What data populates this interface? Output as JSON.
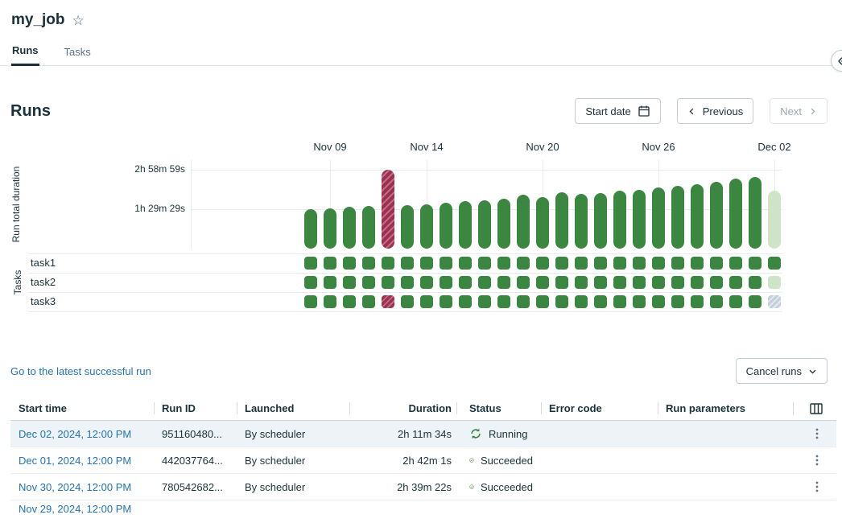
{
  "app": {
    "title": "my_job"
  },
  "tabs": [
    {
      "label": "Runs",
      "active": true
    },
    {
      "label": "Tasks",
      "active": false
    }
  ],
  "section_title": "Runs",
  "toolbar": {
    "start_date": "Start date",
    "previous": "Previous",
    "next": "Next"
  },
  "icons": {
    "favorite": "star-outline",
    "start_date": "calendar",
    "previous": "chevron-left",
    "next": "chevron-right",
    "expand_panel": "double-chevron-left",
    "cancel_runs": "chevron-down",
    "running": "sync-arrows-circle",
    "succeeded": "check-circle",
    "row_menu": "kebab-vertical",
    "column_settings": "table-columns",
    "stop_run": "stop-square"
  },
  "colors": {
    "link": "#2272b4",
    "success": "#3b8640",
    "failed": "#9e2f50",
    "running": "#cfe4c6",
    "pending": "#c3cfda"
  },
  "chart_data": {
    "type": "bar",
    "title": "",
    "xlabel": "",
    "ylabel": "Run total duration",
    "tasks_axis_label": "Tasks",
    "task_rows": [
      "task1",
      "task2",
      "task3"
    ],
    "y_max_seconds": 10739,
    "grid": true,
    "y_ticks": [
      {
        "label": "2h 58m 59s",
        "seconds": 10739
      },
      {
        "label": "1h 29m 29s",
        "seconds": 5369
      }
    ],
    "x_ticks": [
      {
        "label": "Nov 09",
        "index": 1
      },
      {
        "label": "Nov 14",
        "index": 6
      },
      {
        "label": "Nov 20",
        "index": 12
      },
      {
        "label": "Nov 26",
        "index": 18
      },
      {
        "label": "Dec 02",
        "index": 24
      }
    ],
    "runs": [
      {
        "date": "Nov 08",
        "duration_s": 5369,
        "status": "success",
        "tasks": [
          "success",
          "success",
          "success"
        ]
      },
      {
        "date": "Nov 09",
        "duration_s": 5520,
        "status": "success",
        "tasks": [
          "success",
          "success",
          "success"
        ]
      },
      {
        "date": "Nov 10",
        "duration_s": 5650,
        "status": "success",
        "tasks": [
          "success",
          "success",
          "success"
        ]
      },
      {
        "date": "Nov 11",
        "duration_s": 5810,
        "status": "success",
        "tasks": [
          "success",
          "success",
          "success"
        ]
      },
      {
        "date": "Nov 12",
        "duration_s": 10739,
        "status": "failed",
        "tasks": [
          "success",
          "success",
          "failed"
        ]
      },
      {
        "date": "Nov 13",
        "duration_s": 5930,
        "status": "success",
        "tasks": [
          "success",
          "success",
          "success"
        ]
      },
      {
        "date": "Nov 14",
        "duration_s": 6080,
        "status": "success",
        "tasks": [
          "success",
          "success",
          "success"
        ]
      },
      {
        "date": "Nov 15",
        "duration_s": 6290,
        "status": "success",
        "tasks": [
          "success",
          "success",
          "success"
        ]
      },
      {
        "date": "Nov 16",
        "duration_s": 6420,
        "status": "success",
        "tasks": [
          "success",
          "success",
          "success"
        ]
      },
      {
        "date": "Nov 17",
        "duration_s": 6610,
        "status": "success",
        "tasks": [
          "success",
          "success",
          "success"
        ]
      },
      {
        "date": "Nov 18",
        "duration_s": 6830,
        "status": "success",
        "tasks": [
          "success",
          "success",
          "success"
        ]
      },
      {
        "date": "Nov 19",
        "duration_s": 7320,
        "status": "success",
        "tasks": [
          "success",
          "success",
          "success"
        ]
      },
      {
        "date": "Nov 20",
        "duration_s": 7020,
        "status": "success",
        "tasks": [
          "success",
          "success",
          "success"
        ]
      },
      {
        "date": "Nov 21",
        "duration_s": 7680,
        "status": "success",
        "tasks": [
          "success",
          "success",
          "success"
        ]
      },
      {
        "date": "Nov 22",
        "duration_s": 7460,
        "status": "success",
        "tasks": [
          "success",
          "success",
          "success"
        ]
      },
      {
        "date": "Nov 23",
        "duration_s": 7590,
        "status": "success",
        "tasks": [
          "success",
          "success",
          "success"
        ]
      },
      {
        "date": "Nov 24",
        "duration_s": 7880,
        "status": "success",
        "tasks": [
          "success",
          "success",
          "success"
        ]
      },
      {
        "date": "Nov 25",
        "duration_s": 8040,
        "status": "success",
        "tasks": [
          "success",
          "success",
          "success"
        ]
      },
      {
        "date": "Nov 26",
        "duration_s": 8310,
        "status": "success",
        "tasks": [
          "success",
          "success",
          "success"
        ]
      },
      {
        "date": "Nov 27",
        "duration_s": 8520,
        "status": "success",
        "tasks": [
          "success",
          "success",
          "success"
        ]
      },
      {
        "date": "Nov 28",
        "duration_s": 8770,
        "status": "success",
        "tasks": [
          "success",
          "success",
          "success"
        ]
      },
      {
        "date": "Nov 29",
        "duration_s": 9080,
        "status": "success",
        "tasks": [
          "success",
          "success",
          "success"
        ]
      },
      {
        "date": "Nov 30",
        "duration_s": 9562,
        "status": "success",
        "tasks": [
          "success",
          "success",
          "success"
        ]
      },
      {
        "date": "Dec 01",
        "duration_s": 9721,
        "status": "success",
        "tasks": [
          "success",
          "success",
          "success"
        ]
      },
      {
        "date": "Dec 02",
        "duration_s": 7894,
        "status": "running",
        "tasks": [
          "success",
          "running",
          "pending"
        ]
      }
    ]
  },
  "latest_run_link": "Go to the latest successful run",
  "cancel_runs": {
    "label": "Cancel runs"
  },
  "table": {
    "columns": [
      "Start time",
      "Run ID",
      "Launched",
      "Duration",
      "Status",
      "Error code",
      "Run parameters"
    ],
    "rows": [
      {
        "start_time": "Dec 02, 2024, 12:00 PM",
        "run_id": "951160480...",
        "launched": "By scheduler",
        "duration": "2h 11m 34s",
        "status": "Running",
        "error_code": "",
        "run_parameters": "",
        "cancelable": true,
        "highlighted": true
      },
      {
        "start_time": "Dec 01, 2024, 12:00 PM",
        "run_id": "442037764...",
        "launched": "By scheduler",
        "duration": "2h 42m 1s",
        "status": "Succeeded",
        "error_code": "",
        "run_parameters": ""
      },
      {
        "start_time": "Nov 30, 2024, 12:00 PM",
        "run_id": "780542682...",
        "launched": "By scheduler",
        "duration": "2h 39m 22s",
        "status": "Succeeded",
        "error_code": "",
        "run_parameters": ""
      },
      {
        "start_time": "Nov 29, 2024, 12:00 PM",
        "run_id": "",
        "launched": "",
        "duration": "",
        "status": "",
        "error_code": "",
        "run_parameters": "",
        "partial": true
      }
    ]
  }
}
